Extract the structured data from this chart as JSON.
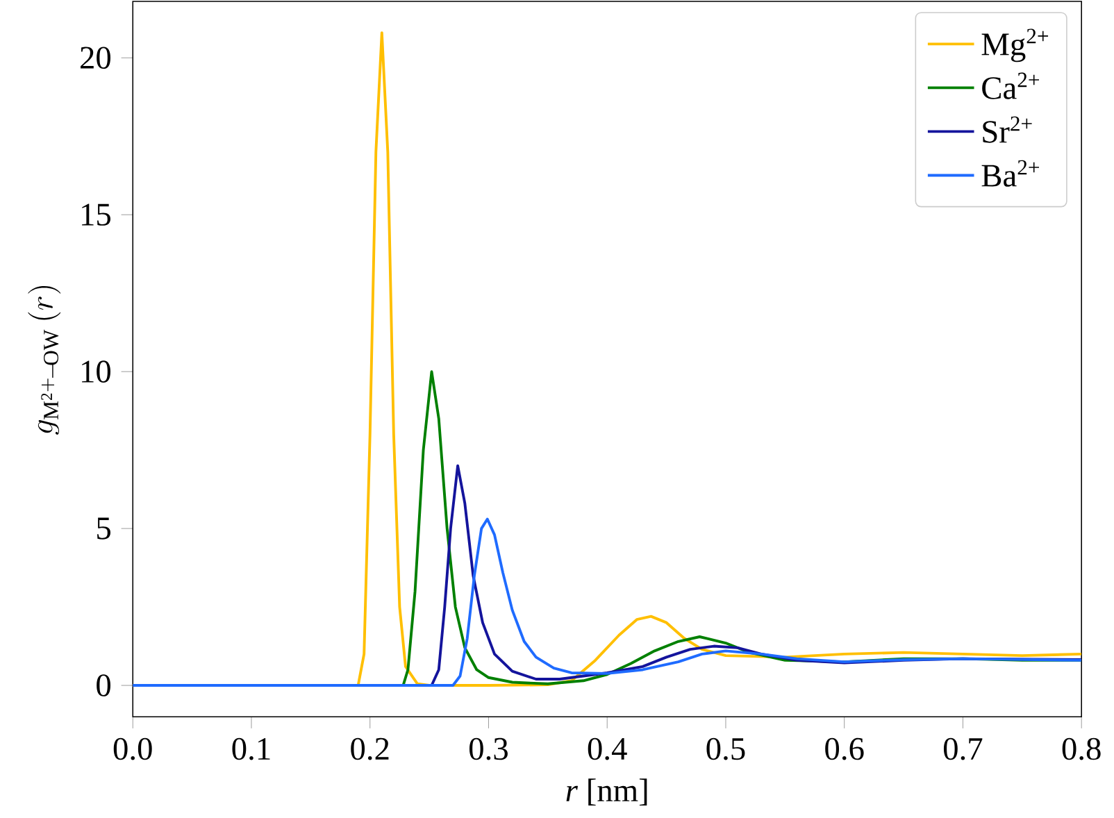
{
  "chart_data": {
    "type": "line",
    "xlabel": "*r* [nm]",
    "ylabel": "g_{\\mathrm{M^{2+}\\!-\\!OW}}\\,(r)",
    "xlim": [
      0.0,
      0.8
    ],
    "ylim": [
      -1,
      21.8
    ],
    "xticks": [
      {
        "value": 0.0,
        "label": "0.0"
      },
      {
        "value": 0.1,
        "label": "0.1"
      },
      {
        "value": 0.2,
        "label": "0.2"
      },
      {
        "value": 0.3,
        "label": "0.3"
      },
      {
        "value": 0.4,
        "label": "0.4"
      },
      {
        "value": 0.5,
        "label": "0.5"
      },
      {
        "value": 0.6,
        "label": "0.6"
      },
      {
        "value": 0.7,
        "label": "0.7"
      },
      {
        "value": 0.8,
        "label": "0.8"
      }
    ],
    "yticks": [
      0,
      5,
      10,
      15,
      20
    ],
    "grid": false,
    "legend": "top right",
    "marker": "none",
    "line_style": "solid",
    "series": [
      {
        "name": "Mg$^{2+}$",
        "color": "#ffbf00",
        "x": [
          0.0,
          0.1,
          0.19,
          0.195,
          0.2,
          0.205,
          0.21,
          0.215,
          0.22,
          0.225,
          0.23,
          0.24,
          0.25,
          0.3,
          0.35,
          0.37,
          0.39,
          0.41,
          0.425,
          0.437,
          0.45,
          0.465,
          0.48,
          0.5,
          0.55,
          0.6,
          0.65,
          0.7,
          0.75,
          0.8
        ],
        "values": [
          0,
          0,
          0,
          1.0,
          8,
          17,
          20.8,
          17,
          8,
          2.5,
          0.6,
          0.05,
          0,
          0,
          0.02,
          0.15,
          0.8,
          1.6,
          2.1,
          2.2,
          2.0,
          1.5,
          1.15,
          0.95,
          0.9,
          1.0,
          1.05,
          1.0,
          0.95,
          1.0
        ]
      },
      {
        "name": "Ca$^{2+}$",
        "color": "#008000",
        "x": [
          0.0,
          0.1,
          0.228,
          0.232,
          0.238,
          0.245,
          0.252,
          0.258,
          0.265,
          0.272,
          0.28,
          0.29,
          0.3,
          0.32,
          0.35,
          0.38,
          0.4,
          0.42,
          0.44,
          0.46,
          0.478,
          0.5,
          0.52,
          0.55,
          0.6,
          0.65,
          0.7,
          0.75,
          0.8
        ],
        "values": [
          0,
          0,
          0,
          0.5,
          3,
          7.5,
          10.0,
          8.5,
          5,
          2.5,
          1.2,
          0.5,
          0.25,
          0.1,
          0.05,
          0.15,
          0.35,
          0.7,
          1.1,
          1.4,
          1.55,
          1.35,
          1.05,
          0.8,
          0.75,
          0.85,
          0.85,
          0.8,
          0.8
        ]
      },
      {
        "name": "Sr$^{2+}$",
        "color": "#14149c",
        "x": [
          0.0,
          0.1,
          0.252,
          0.258,
          0.263,
          0.268,
          0.274,
          0.28,
          0.287,
          0.295,
          0.305,
          0.32,
          0.34,
          0.36,
          0.38,
          0.4,
          0.43,
          0.45,
          0.47,
          0.49,
          0.51,
          0.53,
          0.56,
          0.6,
          0.65,
          0.7,
          0.8
        ],
        "values": [
          0,
          0,
          0,
          0.5,
          2.5,
          5,
          7.0,
          5.8,
          3.5,
          2.0,
          1.0,
          0.45,
          0.2,
          0.2,
          0.3,
          0.4,
          0.6,
          0.9,
          1.15,
          1.25,
          1.2,
          1.0,
          0.8,
          0.72,
          0.8,
          0.85,
          0.82
        ]
      },
      {
        "name": "Ba$^{2+}$",
        "color": "#1f6bff",
        "x": [
          0.0,
          0.1,
          0.27,
          0.276,
          0.282,
          0.288,
          0.294,
          0.299,
          0.305,
          0.312,
          0.32,
          0.33,
          0.34,
          0.355,
          0.37,
          0.4,
          0.43,
          0.46,
          0.48,
          0.5,
          0.53,
          0.56,
          0.6,
          0.65,
          0.7,
          0.8
        ],
        "values": [
          0,
          0,
          0,
          0.3,
          1.5,
          3.5,
          5.0,
          5.3,
          4.8,
          3.6,
          2.4,
          1.4,
          0.9,
          0.55,
          0.4,
          0.38,
          0.5,
          0.75,
          1.0,
          1.1,
          1.0,
          0.85,
          0.75,
          0.82,
          0.85,
          0.8
        ]
      }
    ]
  }
}
